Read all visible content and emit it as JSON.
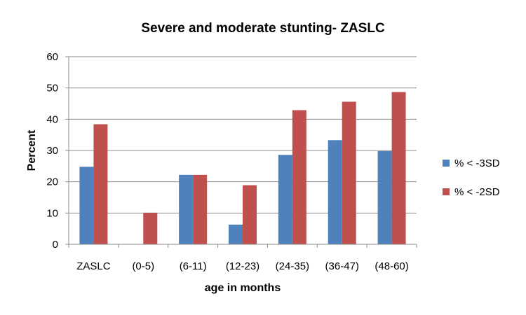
{
  "chart_data": {
    "type": "bar",
    "title": "Severe and moderate stunting- ZASLC",
    "xlabel": "age in months",
    "ylabel": "Percent",
    "ylim": [
      0,
      60
    ],
    "yticks": [
      0,
      10,
      20,
      30,
      40,
      50,
      60
    ],
    "grid": true,
    "legend_position": "right",
    "categories": [
      "ZASLC",
      "(0-5)",
      "(6-11)",
      "(12-23)",
      "(24-35)",
      "(36-47)",
      "(48-60)"
    ],
    "series": [
      {
        "name": "% < -3SD",
        "color": "#4F81BD",
        "values": [
          24.8,
          0,
          22.2,
          6.3,
          28.6,
          33.3,
          29.8
        ]
      },
      {
        "name": "% < -2SD",
        "color": "#C0504D",
        "values": [
          38.4,
          10.1,
          22.2,
          18.9,
          42.9,
          45.6,
          48.7
        ]
      }
    ]
  }
}
